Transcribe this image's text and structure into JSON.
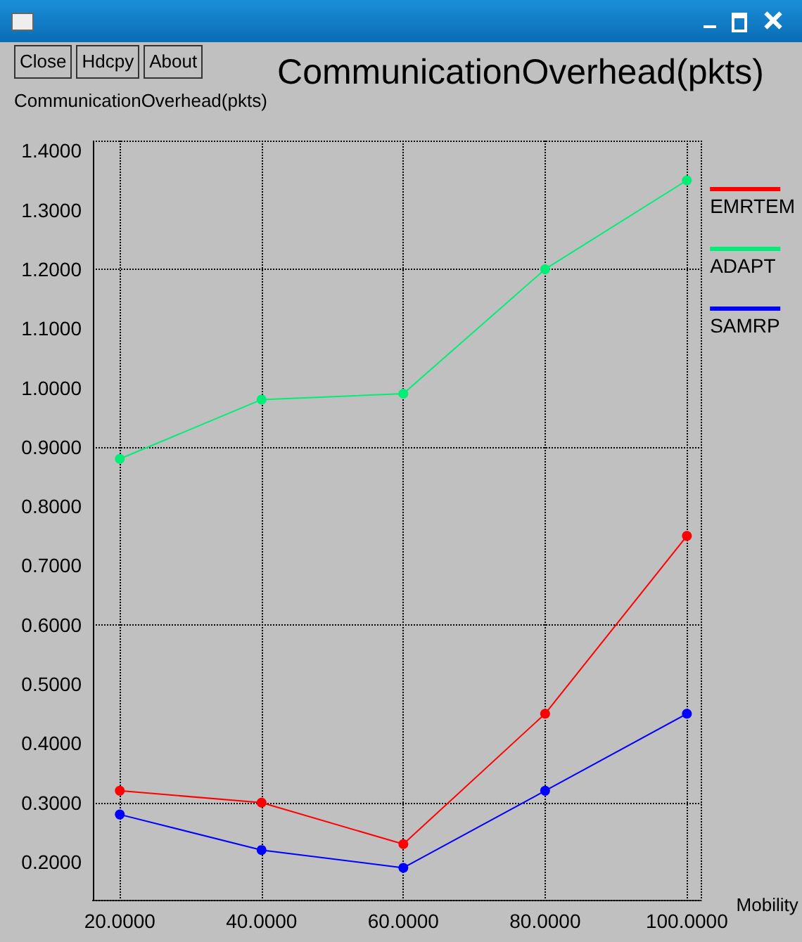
{
  "chart_data": {
    "type": "line",
    "title": "CommunicationOverhead(pkts)",
    "ylabel": "CommunicationOverhead(pkts)",
    "xlabel": "Mobility",
    "annotations": [
      "Close",
      "Hdcpy",
      "About"
    ],
    "x": [
      20,
      40,
      60,
      80,
      100
    ],
    "series": [
      {
        "name": "EMRTEM",
        "color": "#ff0000",
        "values": [
          0.32,
          0.3,
          0.23,
          0.45,
          0.75
        ]
      },
      {
        "name": "ADAPT",
        "color": "#00ee76",
        "values": [
          0.88,
          0.98,
          0.99,
          1.2,
          1.35
        ]
      },
      {
        "name": "SAMRP",
        "color": "#0000ff",
        "values": [
          0.28,
          0.22,
          0.19,
          0.32,
          0.45
        ]
      }
    ],
    "xlim": [
      16.2,
      102
    ],
    "xticks": [
      {
        "value": 20,
        "label": "20.0000"
      },
      {
        "value": 40,
        "label": "40.0000"
      },
      {
        "value": 60,
        "label": "60.0000"
      },
      {
        "value": 80,
        "label": "80.0000"
      },
      {
        "value": 100,
        "label": "100.0000"
      }
    ],
    "ylim": [
      0.136,
      1.417
    ],
    "yticks": [
      {
        "value": 0.2,
        "label": "0.2000"
      },
      {
        "value": 0.3,
        "label": "0.3000"
      },
      {
        "value": 0.4,
        "label": "0.4000"
      },
      {
        "value": 0.5,
        "label": "0.5000"
      },
      {
        "value": 0.6,
        "label": "0.6000"
      },
      {
        "value": 0.7,
        "label": "0.7000"
      },
      {
        "value": 0.8,
        "label": "0.8000"
      },
      {
        "value": 0.9,
        "label": "0.9000"
      },
      {
        "value": 1.0,
        "label": "1.0000"
      },
      {
        "value": 1.1,
        "label": "1.1000"
      },
      {
        "value": 1.2,
        "label": "1.2000"
      },
      {
        "value": 1.3,
        "label": "1.3000"
      },
      {
        "value": 1.4,
        "label": "1.4000"
      }
    ],
    "grid": true,
    "legend": "right",
    "marker": "circle",
    "line_style": "solid"
  }
}
